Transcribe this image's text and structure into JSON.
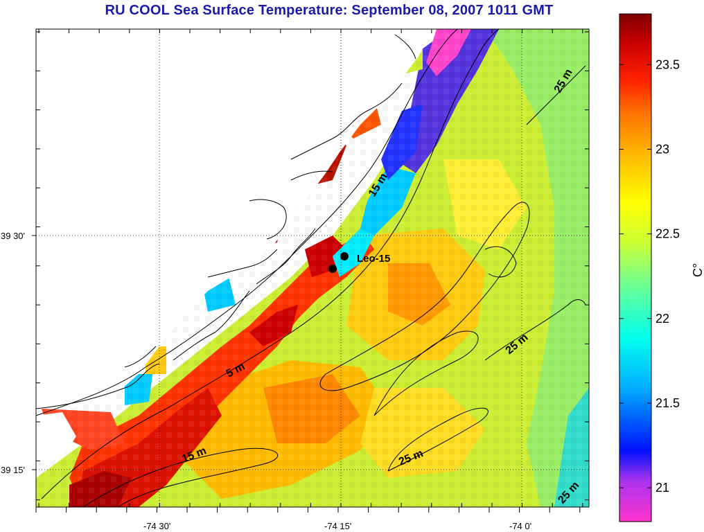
{
  "title": "RU COOL  Sea Surface Temperature:  September 08, 2007 1011 GMT",
  "map": {
    "lat_labels": [
      "39 30'",
      "39 15'"
    ],
    "lon_labels": [
      "-74 30'",
      "-74 15'",
      "-74 0'"
    ],
    "station": {
      "name": "Leo-15"
    },
    "contour_labels": [
      "15 m",
      "5 m",
      "15 m",
      "25 m",
      "25 m",
      "25 m",
      "25 m"
    ]
  },
  "colorbar": {
    "unit": "C°",
    "range": [
      20.8,
      23.8
    ],
    "ticks": [
      "21",
      "21.5",
      "22",
      "22.5",
      "23",
      "23.5"
    ],
    "colors": [
      "#ff33cc",
      "#8833ee",
      "#0033ff",
      "#00aaff",
      "#00ffff",
      "#33ffaa",
      "#aaff33",
      "#ffff00",
      "#ffbb00",
      "#ff7700",
      "#ff2200",
      "#cc0000",
      "#800000"
    ]
  }
}
